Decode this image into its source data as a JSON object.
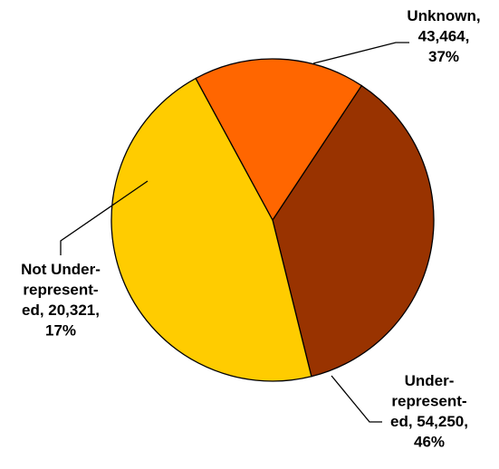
{
  "chart_data": {
    "type": "pie",
    "title": "",
    "legend": "none",
    "slices": [
      {
        "category": "Unknown",
        "value": 43464,
        "percent": 37,
        "color": "#993300",
        "label_lines": [
          "Unknown,",
          "43,464,",
          "37%"
        ]
      },
      {
        "category": "Under-represented",
        "value": 54250,
        "percent": 46,
        "color": "#ffcc00",
        "label_lines": [
          "Under-",
          "represent-",
          "ed, 54,250,",
          "46%"
        ]
      },
      {
        "category": "Not Under-represented",
        "value": 20321,
        "percent": 17,
        "color": "#ff6600",
        "label_lines": [
          "Not Under-",
          "represent-",
          "ed, 20,321,",
          "17%"
        ]
      }
    ]
  }
}
